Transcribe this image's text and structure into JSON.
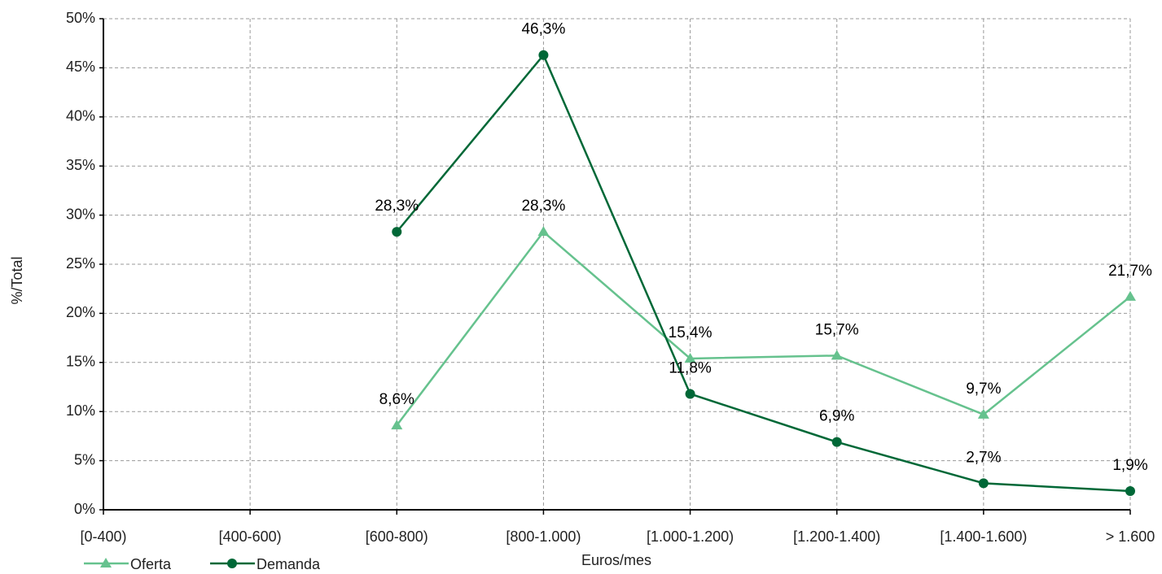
{
  "chart_data": {
    "type": "line",
    "xlabel": "Euros/mes",
    "ylabel": "%/Total",
    "categories": [
      "[0-400)",
      "[400-600)",
      "[600-800)",
      "[800-1.000)",
      "[1.000-1.200)",
      "[1.200-1.400)",
      "[1.400-1.600)",
      "> 1.600"
    ],
    "series": [
      {
        "name": "Oferta",
        "color": "#66c28e",
        "marker": "triangle",
        "values": [
          null,
          null,
          8.6,
          28.3,
          15.4,
          15.7,
          9.7,
          21.7
        ],
        "value_labels": [
          null,
          null,
          "8,6%",
          "28,3%",
          "15,4%",
          "15,7%",
          "9,7%",
          "21,7%"
        ]
      },
      {
        "name": "Demanda",
        "color": "#006837",
        "marker": "circle",
        "values": [
          null,
          null,
          28.3,
          46.3,
          11.8,
          6.9,
          2.7,
          1.9
        ],
        "value_labels": [
          null,
          null,
          "28,3%",
          "46,3%",
          "11,8%",
          "6,9%",
          "2,7%",
          "1,9%"
        ]
      }
    ],
    "ylim": [
      0,
      50
    ],
    "yticks": [
      {
        "value": 0,
        "label": "0%"
      },
      {
        "value": 5,
        "label": "5%"
      },
      {
        "value": 10,
        "label": "10%"
      },
      {
        "value": 15,
        "label": "15%"
      },
      {
        "value": 20,
        "label": "20%"
      },
      {
        "value": 25,
        "label": "25%"
      },
      {
        "value": 30,
        "label": "30%"
      },
      {
        "value": 35,
        "label": "35%"
      },
      {
        "value": 40,
        "label": "40%"
      },
      {
        "value": 45,
        "label": "45%"
      },
      {
        "value": 50,
        "label": "50%"
      }
    ],
    "grid": true,
    "legend": "bottom-left"
  }
}
